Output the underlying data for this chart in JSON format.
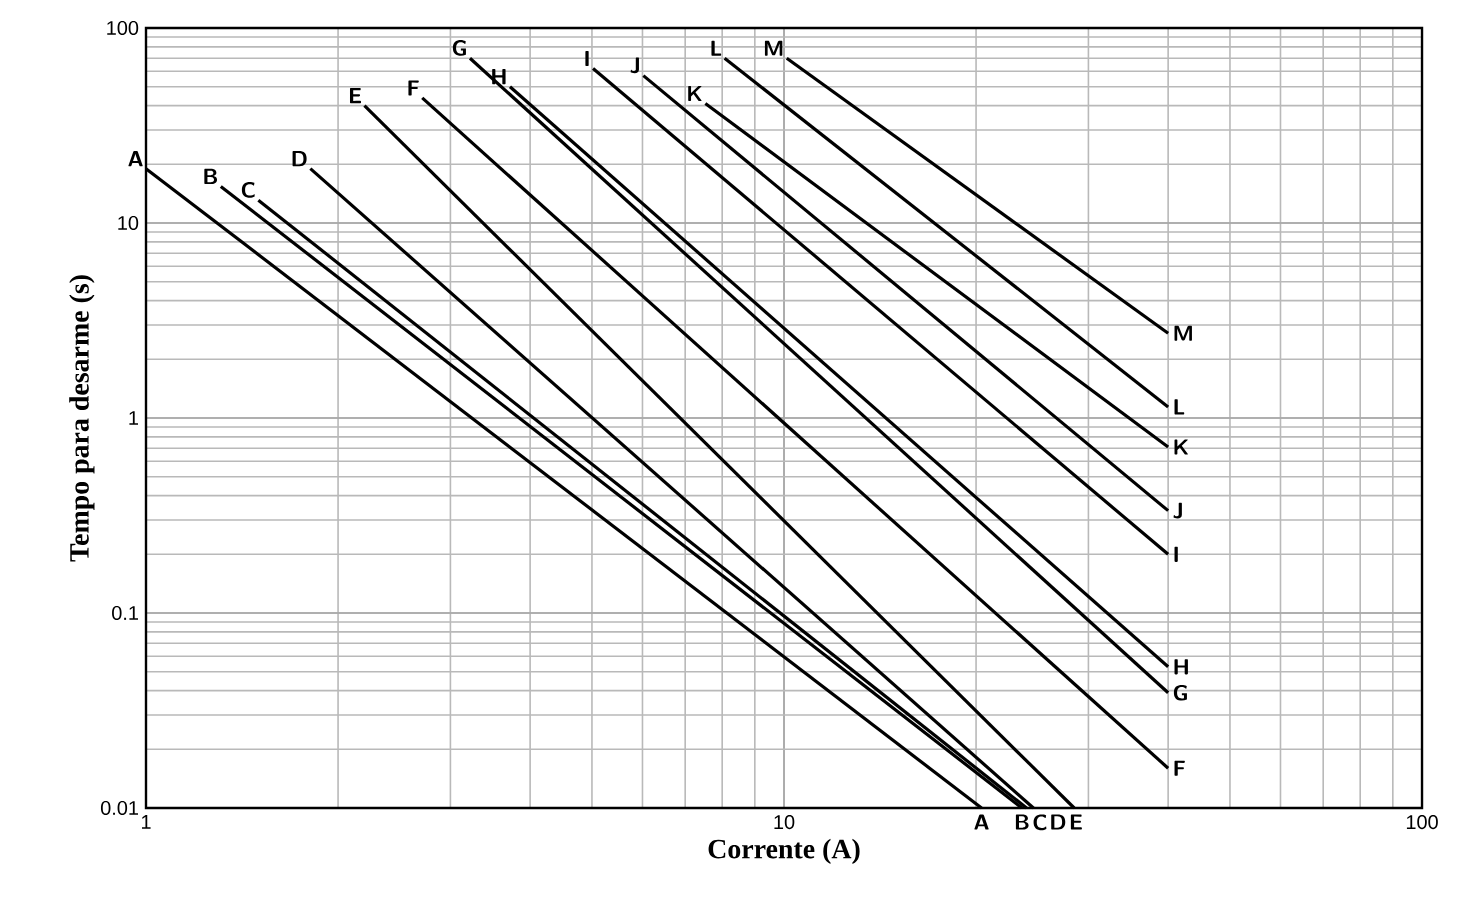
{
  "chart_data": {
    "type": "line",
    "xlabel": "Corrente (A)",
    "ylabel": "Tempo para desarme (s)",
    "log": "xy",
    "grid": true,
    "legend": false,
    "marker": "none",
    "line_style": "solid",
    "xlim": [
      1,
      100
    ],
    "xticks": [
      1,
      10,
      100
    ],
    "ylim": [
      0.01,
      100
    ],
    "yticks": [
      0.01,
      0.1,
      1,
      10,
      100
    ],
    "series": [
      {
        "name": "A",
        "color": "#000000",
        "x": [
          1,
          20.4
        ],
        "values": [
          19,
          0.01
        ]
      },
      {
        "name": "B",
        "color": "#000000",
        "x": [
          1.31,
          23.6
        ],
        "values": [
          15.4,
          0.01
        ]
      },
      {
        "name": "C",
        "color": "#000000",
        "x": [
          1.5,
          24
        ],
        "values": [
          13.1,
          0.01
        ]
      },
      {
        "name": "D",
        "color": "#000000",
        "x": [
          1.81,
          24.6
        ],
        "values": [
          19,
          0.01
        ]
      },
      {
        "name": "E",
        "color": "#000000",
        "x": [
          2.2,
          28.5
        ],
        "values": [
          40,
          0.01
        ]
      },
      {
        "name": "F",
        "color": "#000000",
        "x": [
          2.71,
          40
        ],
        "values": [
          43.8,
          0.016
        ]
      },
      {
        "name": "G",
        "color": "#000000",
        "x": [
          3.22,
          40
        ],
        "values": [
          70,
          0.039
        ]
      },
      {
        "name": "H",
        "color": "#000000",
        "x": [
          3.72,
          40
        ],
        "values": [
          50,
          0.053
        ]
      },
      {
        "name": "I",
        "color": "#000000",
        "x": [
          5.02,
          40
        ],
        "values": [
          62,
          0.2
        ]
      },
      {
        "name": "J",
        "color": "#000000",
        "x": [
          6.02,
          40
        ],
        "values": [
          57,
          0.335
        ]
      },
      {
        "name": "K",
        "color": "#000000",
        "x": [
          7.53,
          40
        ],
        "values": [
          41,
          0.71
        ]
      },
      {
        "name": "L",
        "color": "#000000",
        "x": [
          8.07,
          40
        ],
        "values": [
          70,
          1.14
        ]
      },
      {
        "name": "M",
        "color": "#000000",
        "x": [
          10.1,
          40
        ],
        "values": [
          70,
          2.72
        ]
      }
    ]
  }
}
